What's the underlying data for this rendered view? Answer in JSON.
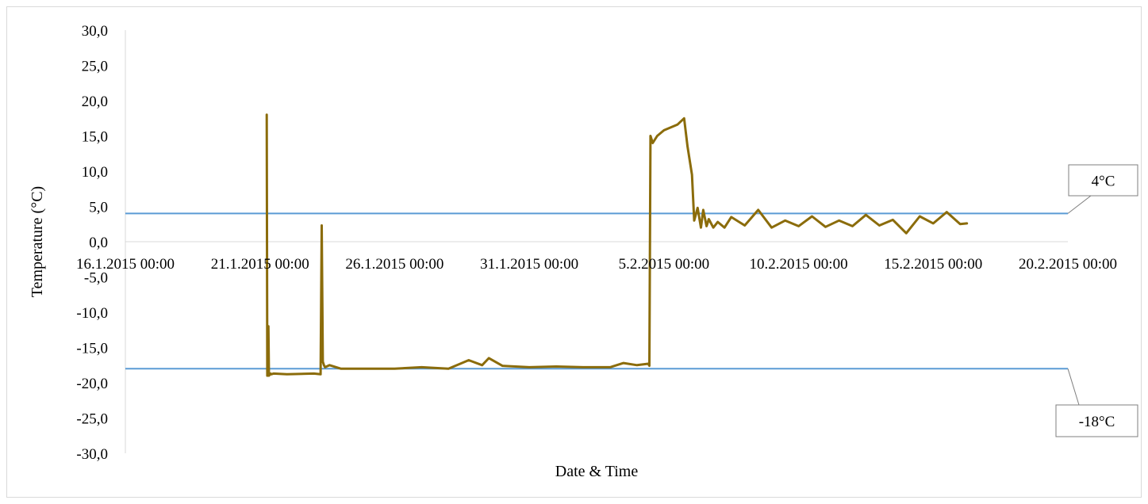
{
  "chart_data": {
    "type": "line",
    "title": "",
    "xlabel": "Date & Time",
    "ylabel": "Temperature (°C)",
    "ylim": [
      -30,
      30
    ],
    "y_ticks": [
      30,
      25,
      20,
      15,
      10,
      5,
      0,
      -5,
      -10,
      -15,
      -20,
      -25,
      -30
    ],
    "y_tick_labels": [
      "30,0",
      "25,0",
      "20,0",
      "15,0",
      "10,0",
      "5,0",
      "0,0",
      "-5,0",
      "-10,0",
      "-15,0",
      "-20,0",
      "-25,0",
      "-30,0"
    ],
    "xlim": [
      "2015-01-16 00:00",
      "2015-02-20 00:00"
    ],
    "x_ticks": [
      "2015-01-16 00:00",
      "2015-01-21 00:00",
      "2015-01-26 00:00",
      "2015-01-31 00:00",
      "2015-02-05 00:00",
      "2015-02-10 00:00",
      "2015-02-15 00:00",
      "2015-02-20 00:00"
    ],
    "x_tick_labels": [
      "16.1.2015 00:00",
      "21.1.2015 00:00",
      "26.1.2015 00:00",
      "31.1.2015 00:00",
      "5.2.2015 00:00",
      "10.2.2015 00:00",
      "15.2.2015 00:00",
      "20.2.2015 00:00"
    ],
    "grid": false,
    "legend": "none",
    "series": [
      {
        "color": "#8B6C0B",
        "x": [
          "2015-01-21 06:00",
          "2015-01-21 06:30",
          "2015-01-21 07:00",
          "2015-01-21 07:30",
          "2015-01-21 08:00",
          "2015-01-21 09:00",
          "2015-01-21 09:30",
          "2015-01-21 10:00",
          "2015-01-21 12:00",
          "2015-01-22 00:00",
          "2015-01-23 00:00",
          "2015-01-23 06:00",
          "2015-01-23 07:00",
          "2015-01-23 08:00",
          "2015-01-23 09:00",
          "2015-01-23 10:00",
          "2015-01-23 14:00",
          "2015-01-24 00:00",
          "2015-01-25 00:00",
          "2015-01-26 00:00",
          "2015-01-27 00:00",
          "2015-01-28 00:00",
          "2015-01-28 18:00",
          "2015-01-29 06:00",
          "2015-01-29 12:00",
          "2015-01-30 00:00",
          "2015-01-31 00:00",
          "2015-02-01 00:00",
          "2015-02-02 00:00",
          "2015-02-03 00:00",
          "2015-02-03 12:00",
          "2015-02-04 00:00",
          "2015-02-04 10:00",
          "2015-02-04 11:00",
          "2015-02-04 12:00",
          "2015-02-04 14:00",
          "2015-02-04 18:00",
          "2015-02-05 00:00",
          "2015-02-05 12:00",
          "2015-02-05 18:00",
          "2015-02-05 21:00",
          "2015-02-06 01:00",
          "2015-02-06 03:00",
          "2015-02-06 06:00",
          "2015-02-06 09:00",
          "2015-02-06 11:00",
          "2015-02-06 14:00",
          "2015-02-06 16:00",
          "2015-02-06 20:00",
          "2015-02-07 00:00",
          "2015-02-07 06:00",
          "2015-02-07 12:00",
          "2015-02-08 00:00",
          "2015-02-08 12:00",
          "2015-02-09 00:00",
          "2015-02-09 12:00",
          "2015-02-10 00:00",
          "2015-02-10 12:00",
          "2015-02-11 00:00",
          "2015-02-11 12:00",
          "2015-02-12 00:00",
          "2015-02-12 12:00",
          "2015-02-13 00:00",
          "2015-02-13 12:00",
          "2015-02-14 00:00",
          "2015-02-14 12:00",
          "2015-02-15 00:00",
          "2015-02-15 12:00",
          "2015-02-16 00:00",
          "2015-02-16 06:00"
        ],
        "y": [
          18.0,
          -19.0,
          -18.5,
          -12.0,
          -19.0,
          -18.8,
          -18.7,
          -18.8,
          -18.7,
          -18.8,
          -18.7,
          -18.8,
          2.3,
          -17.0,
          -17.5,
          -17.8,
          -17.5,
          -18.0,
          -18.0,
          -18.0,
          -17.8,
          -18.0,
          -16.8,
          -17.5,
          -16.5,
          -17.6,
          -17.8,
          -17.7,
          -17.8,
          -17.8,
          -17.2,
          -17.5,
          -17.3,
          -17.6,
          15.0,
          14.0,
          15.0,
          15.8,
          16.6,
          17.5,
          13.5,
          9.5,
          3.0,
          4.8,
          2.0,
          4.5,
          2.2,
          3.2,
          2.0,
          2.8,
          2.0,
          3.5,
          2.3,
          4.5,
          2.0,
          3.0,
          2.2,
          3.6,
          2.1,
          3.0,
          2.2,
          3.8,
          2.3,
          3.1,
          1.2,
          3.6,
          2.6,
          4.2,
          2.5,
          2.6
        ]
      }
    ],
    "reference_lines": [
      {
        "label": "4°C",
        "y": 4,
        "color": "#5B9BD5"
      },
      {
        "label": "-18°C",
        "y": -18,
        "color": "#5B9BD5"
      }
    ]
  }
}
